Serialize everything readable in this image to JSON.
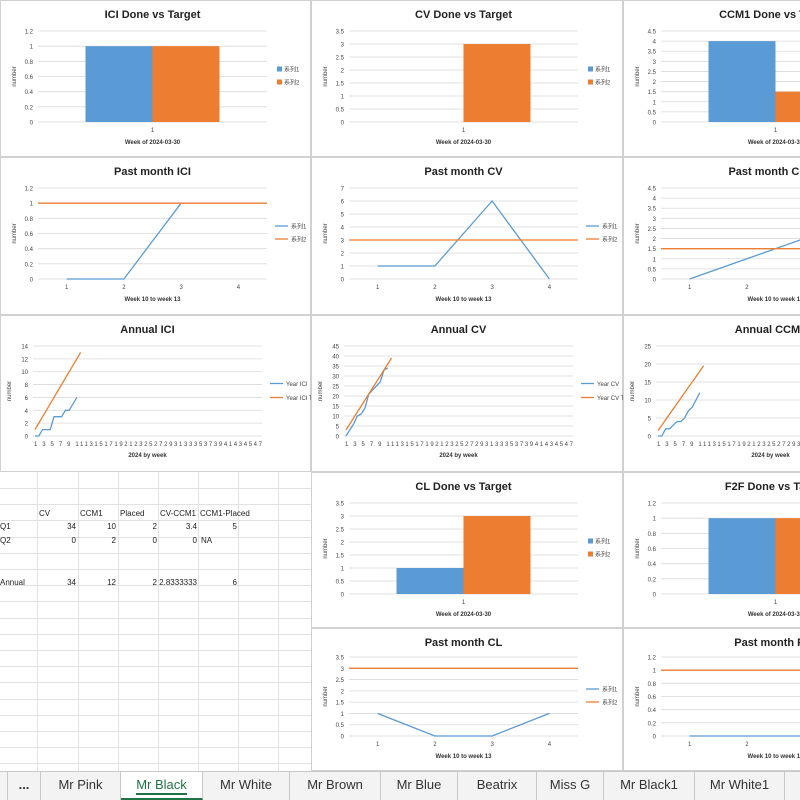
{
  "charts": [
    {
      "id": "c1",
      "type": "bar",
      "title": "ICI Done vs Target",
      "xlabel": "Week of 2024-03-30",
      "ylabel": "number",
      "categories": [
        "1"
      ],
      "ylim": [
        0,
        1.2
      ],
      "yticks": [
        "0",
        "0.2",
        "0.4",
        "0.6",
        "0.8",
        "1",
        "1.2"
      ],
      "series": [
        {
          "name": "系列1",
          "values": [
            1
          ]
        },
        {
          "name": "系列2",
          "values": [
            1
          ]
        }
      ],
      "legend": [
        "系列1",
        "系列2"
      ]
    },
    {
      "id": "c2",
      "type": "bar",
      "title": "CV Done vs Target",
      "xlabel": "Week of 2024-03-30",
      "ylabel": "number",
      "categories": [
        "1"
      ],
      "ylim": [
        0,
        3.5
      ],
      "yticks": [
        "0",
        "0.5",
        "1",
        "1.5",
        "2",
        "2.5",
        "3",
        "3.5"
      ],
      "series": [
        {
          "name": "系列1",
          "values": [
            0
          ]
        },
        {
          "name": "系列2",
          "values": [
            3
          ]
        }
      ],
      "legend": [
        "系列1",
        "系列2"
      ]
    },
    {
      "id": "c3",
      "type": "bar",
      "title": "CCM1 Done vs Target",
      "xlabel": "Week of 2024-03-30",
      "ylabel": "number",
      "categories": [
        "1"
      ],
      "ylim": [
        0,
        4.5
      ],
      "yticks": [
        "0",
        "0.5",
        "1",
        "1.5",
        "2",
        "2.5",
        "3",
        "3.5",
        "4",
        "4.5"
      ],
      "series": [
        {
          "name": "系列1",
          "values": [
            4
          ]
        },
        {
          "name": "系列2",
          "values": [
            1.5
          ]
        }
      ],
      "legend": []
    },
    {
      "id": "c4",
      "type": "line",
      "title": "Past month ICI",
      "xlabel": "Week 10 to week 13",
      "ylabel": "number",
      "categories": [
        "1",
        "2",
        "3",
        "4"
      ],
      "ylim": [
        0,
        1.2
      ],
      "yticks": [
        "0",
        "0.2",
        "0.4",
        "0.6",
        "0.8",
        "1",
        "1.2"
      ],
      "series": [
        {
          "name": "系列1",
          "values": [
            0,
            0,
            1,
            null
          ]
        },
        {
          "name": "系列2",
          "values": [
            1,
            1,
            1,
            1
          ]
        }
      ],
      "legend": [
        "系列1",
        "系列2"
      ]
    },
    {
      "id": "c5",
      "type": "line",
      "title": "Past month CV",
      "xlabel": "Week 10 to week 13",
      "ylabel": "number",
      "categories": [
        "1",
        "2",
        "3",
        "4"
      ],
      "ylim": [
        0,
        7
      ],
      "yticks": [
        "0",
        "1",
        "2",
        "3",
        "4",
        "5",
        "6",
        "7"
      ],
      "series": [
        {
          "name": "系列1",
          "values": [
            1,
            1,
            6,
            0
          ]
        },
        {
          "name": "系列2",
          "values": [
            3,
            3,
            3,
            3
          ]
        }
      ],
      "legend": [
        "系列1",
        "系列2"
      ]
    },
    {
      "id": "c6",
      "type": "line",
      "title": "Past month CCM1",
      "xlabel": "Week 10 to week 13",
      "ylabel": "number",
      "categories": [
        "1",
        "2",
        "3"
      ],
      "ylim": [
        0,
        4.5
      ],
      "yticks": [
        "0",
        "0.5",
        "1",
        "1.5",
        "2",
        "2.5",
        "3",
        "3.5",
        "4",
        "4.5"
      ],
      "series": [
        {
          "name": "系列1",
          "values": [
            0,
            1,
            2
          ]
        },
        {
          "name": "系列2",
          "values": [
            1.5,
            1.5,
            1.5
          ]
        }
      ],
      "legend": []
    },
    {
      "id": "c7",
      "type": "line",
      "title": "Annual ICI",
      "xlabel": "2024 by week",
      "ylabel": "number",
      "xticks": "1 3 5 7 9 11131517192123252729313335373941434547",
      "ylim": [
        0,
        14
      ],
      "yticks": [
        "0",
        "2",
        "4",
        "6",
        "8",
        "10",
        "12",
        "14"
      ],
      "series": [
        {
          "name": "Year ICI",
          "values": [
            0,
            0,
            1,
            1,
            1,
            3,
            3,
            3,
            4,
            4,
            5,
            6
          ]
        },
        {
          "name": "Year ICI Target",
          "values": [
            1,
            2,
            3,
            4,
            5,
            6,
            7,
            8,
            9,
            10,
            11,
            12,
            13
          ]
        }
      ],
      "legend": [
        "Year ICI",
        "Year ICI Target"
      ]
    },
    {
      "id": "c8",
      "type": "line",
      "title": "Annual CV",
      "xlabel": "2024 by week",
      "ylabel": "number",
      "xticks": "1 3 5 7 9 11131517192123252729313335373941434547",
      "ylim": [
        0,
        45
      ],
      "yticks": [
        "0",
        "5",
        "10",
        "15",
        "20",
        "25",
        "30",
        "35",
        "40",
        "45"
      ],
      "series": [
        {
          "name": "Year CV",
          "values": [
            0,
            3,
            6,
            10,
            11,
            14,
            21,
            23,
            25,
            27,
            33,
            34
          ]
        },
        {
          "name": "Year CV Target",
          "values": [
            3,
            6,
            9,
            12,
            15,
            18,
            21,
            24,
            27,
            30,
            33,
            36,
            39
          ]
        }
      ],
      "legend": [
        "Year CV",
        "Year CV Target"
      ]
    },
    {
      "id": "c9",
      "type": "line",
      "title": "Annual CCM1",
      "xlabel": "2024 by week",
      "ylabel": "number",
      "xticks": "1 3 5 7 9 11131517192123252729313335373941434547",
      "ylim": [
        0,
        25
      ],
      "yticks": [
        "0",
        "5",
        "10",
        "15",
        "20",
        "25"
      ],
      "series": [
        {
          "name": "Year CCM1",
          "values": [
            0,
            0,
            2,
            2,
            3,
            4,
            4,
            5,
            7,
            8,
            10,
            12
          ]
        },
        {
          "name": "Year CCM1 Target",
          "values": [
            1.5,
            3,
            4.5,
            6,
            7.5,
            9,
            10.5,
            12,
            13.5,
            15,
            16.5,
            18,
            19.5
          ]
        }
      ],
      "legend": []
    },
    {
      "id": "c10",
      "type": "bar",
      "title": "CL Done vs Target",
      "xlabel": "Week of 2024-03-30",
      "ylabel": "number",
      "categories": [
        "1"
      ],
      "ylim": [
        0,
        3.5
      ],
      "yticks": [
        "0",
        "0.5",
        "1",
        "1.5",
        "2",
        "2.5",
        "3",
        "3.5"
      ],
      "series": [
        {
          "name": "系列1",
          "values": [
            1
          ]
        },
        {
          "name": "系列2",
          "values": [
            3
          ]
        }
      ],
      "legend": [
        "系列1",
        "系列2"
      ]
    },
    {
      "id": "c11",
      "type": "bar",
      "title": "F2F Done vs Target",
      "xlabel": "Week of 2024-03-30",
      "ylabel": "number",
      "categories": [
        "1"
      ],
      "ylim": [
        0,
        1.2
      ],
      "yticks": [
        "0",
        "0.2",
        "0.4",
        "0.6",
        "0.8",
        "1",
        "1.2"
      ],
      "series": [
        {
          "name": "系列1",
          "values": [
            1
          ]
        },
        {
          "name": "系列2",
          "values": [
            1
          ]
        }
      ],
      "legend": []
    },
    {
      "id": "c12",
      "type": "line",
      "title": "Past month CL",
      "xlabel": "Week 10 to week 13",
      "ylabel": "number",
      "categories": [
        "1",
        "2",
        "3",
        "4"
      ],
      "ylim": [
        0,
        3.5
      ],
      "yticks": [
        "0",
        "0.5",
        "1",
        "1.5",
        "2",
        "2.5",
        "3",
        "3.5"
      ],
      "series": [
        {
          "name": "系列1",
          "values": [
            1,
            0,
            0,
            1
          ]
        },
        {
          "name": "系列2",
          "values": [
            3,
            3,
            3,
            3
          ]
        }
      ],
      "legend": [
        "系列1",
        "系列2"
      ]
    },
    {
      "id": "c13",
      "type": "line",
      "title": "Past month F2F",
      "xlabel": "Week 10 to week 13",
      "ylabel": "number",
      "categories": [
        "1",
        "2",
        "3"
      ],
      "ylim": [
        0,
        1.2
      ],
      "yticks": [
        "0",
        "0.2",
        "0.4",
        "0.6",
        "0.8",
        "1",
        "1.2"
      ],
      "series": [
        {
          "name": "系列1",
          "values": [
            0,
            0,
            0
          ]
        },
        {
          "name": "系列2",
          "values": [
            1,
            1,
            1
          ]
        }
      ],
      "legend": []
    }
  ],
  "chart_data": [
    {
      "type": "bar",
      "title": "ICI Done vs Target",
      "categories": [
        "1"
      ],
      "series": [
        {
          "name": "系列1",
          "values": [
            1
          ]
        },
        {
          "name": "系列2",
          "values": [
            1
          ]
        }
      ],
      "xlabel": "Week of 2024-03-30",
      "ylabel": "number",
      "ylim": [
        0,
        1.2
      ]
    },
    {
      "type": "bar",
      "title": "CV Done vs Target",
      "categories": [
        "1"
      ],
      "series": [
        {
          "name": "系列1",
          "values": [
            0
          ]
        },
        {
          "name": "系列2",
          "values": [
            3
          ]
        }
      ],
      "xlabel": "Week of 2024-03-30",
      "ylabel": "number",
      "ylim": [
        0,
        3.5
      ]
    },
    {
      "type": "bar",
      "title": "CCM1 Done vs Target",
      "categories": [
        "1"
      ],
      "series": [
        {
          "name": "系列1",
          "values": [
            4
          ]
        },
        {
          "name": "系列2",
          "values": [
            1.5
          ]
        }
      ],
      "xlabel": "Week of 2024-03-30",
      "ylabel": "number",
      "ylim": [
        0,
        4.5
      ]
    },
    {
      "type": "line",
      "title": "Past month ICI",
      "x": [
        1,
        2,
        3,
        4
      ],
      "series": [
        {
          "name": "系列1",
          "values": [
            0,
            0,
            1,
            null
          ]
        },
        {
          "name": "系列2",
          "values": [
            1,
            1,
            1,
            1
          ]
        }
      ],
      "xlabel": "Week 10 to week 13",
      "ylabel": "number",
      "ylim": [
        0,
        1.2
      ]
    },
    {
      "type": "line",
      "title": "Past month CV",
      "x": [
        1,
        2,
        3,
        4
      ],
      "series": [
        {
          "name": "系列1",
          "values": [
            1,
            1,
            6,
            0
          ]
        },
        {
          "name": "系列2",
          "values": [
            3,
            3,
            3,
            3
          ]
        }
      ],
      "xlabel": "Week 10 to week 13",
      "ylabel": "number",
      "ylim": [
        0,
        7
      ]
    },
    {
      "type": "line",
      "title": "Past month CCM1",
      "x": [
        1,
        2,
        3
      ],
      "series": [
        {
          "name": "系列1",
          "values": [
            0,
            1,
            2
          ]
        },
        {
          "name": "系列2",
          "values": [
            1.5,
            1.5,
            1.5
          ]
        }
      ],
      "xlabel": "Week 10 to week 13",
      "ylabel": "number",
      "ylim": [
        0,
        4.5
      ]
    },
    {
      "type": "line",
      "title": "Annual ICI",
      "series": [
        {
          "name": "Year ICI",
          "values": [
            0,
            0,
            1,
            1,
            1,
            3,
            3,
            3,
            4,
            4,
            5,
            6
          ]
        },
        {
          "name": "Year ICI Target",
          "values": [
            1,
            2,
            3,
            4,
            5,
            6,
            7,
            8,
            9,
            10,
            11,
            12,
            13
          ]
        }
      ],
      "xlabel": "2024 by week",
      "ylabel": "number",
      "ylim": [
        0,
        14
      ]
    },
    {
      "type": "line",
      "title": "Annual CV",
      "series": [
        {
          "name": "Year CV",
          "values": [
            0,
            3,
            6,
            10,
            11,
            14,
            21,
            23,
            25,
            27,
            33,
            34
          ]
        },
        {
          "name": "Year CV Target",
          "values": [
            3,
            6,
            9,
            12,
            15,
            18,
            21,
            24,
            27,
            30,
            33,
            36,
            39
          ]
        }
      ],
      "xlabel": "2024 by week",
      "ylabel": "number",
      "ylim": [
        0,
        45
      ]
    },
    {
      "type": "line",
      "title": "Annual CCM1",
      "series": [
        {
          "name": "Year CCM1",
          "values": [
            0,
            0,
            2,
            2,
            3,
            4,
            4,
            5,
            7,
            8,
            10,
            12
          ]
        },
        {
          "name": "Year CCM1 Target",
          "values": [
            1.5,
            3,
            4.5,
            6,
            7.5,
            9,
            10.5,
            12,
            13.5,
            15,
            16.5,
            18,
            19.5
          ]
        }
      ],
      "xlabel": "2024 by week",
      "ylabel": "number",
      "ylim": [
        0,
        25
      ]
    },
    {
      "type": "bar",
      "title": "CL Done vs Target",
      "categories": [
        "1"
      ],
      "series": [
        {
          "name": "系列1",
          "values": [
            1
          ]
        },
        {
          "name": "系列2",
          "values": [
            3
          ]
        }
      ],
      "xlabel": "Week of 2024-03-30",
      "ylabel": "number",
      "ylim": [
        0,
        3.5
      ]
    },
    {
      "type": "bar",
      "title": "F2F Done vs Target",
      "categories": [
        "1"
      ],
      "series": [
        {
          "name": "系列1",
          "values": [
            1
          ]
        },
        {
          "name": "系列2",
          "values": [
            1
          ]
        }
      ],
      "xlabel": "Week of 2024-03-30",
      "ylabel": "number",
      "ylim": [
        0,
        1.2
      ]
    },
    {
      "type": "line",
      "title": "Past month CL",
      "x": [
        1,
        2,
        3,
        4
      ],
      "series": [
        {
          "name": "系列1",
          "values": [
            1,
            0,
            0,
            1
          ]
        },
        {
          "name": "系列2",
          "values": [
            3,
            3,
            3,
            3
          ]
        }
      ],
      "xlabel": "Week 10 to week 13",
      "ylabel": "number",
      "ylim": [
        0,
        3.5
      ]
    },
    {
      "type": "line",
      "title": "Past month F2F",
      "x": [
        1,
        2,
        3
      ],
      "series": [
        {
          "name": "系列1",
          "values": [
            0,
            0,
            0
          ]
        },
        {
          "name": "系列2",
          "values": [
            1,
            1,
            1
          ]
        }
      ],
      "xlabel": "Week 10 to week 13",
      "ylabel": "number",
      "ylim": [
        0,
        1.2
      ]
    }
  ],
  "table": {
    "headers": [
      "CV",
      "CCM1",
      "Placed",
      "CV-CCM1",
      "CCM1-Placed"
    ],
    "rows": [
      {
        "label": "Q1",
        "values": [
          "34",
          "10",
          "2",
          "3.4",
          "5"
        ]
      },
      {
        "label": "Q2",
        "values": [
          "0",
          "2",
          "0",
          "0",
          "NA"
        ]
      },
      {
        "label": "Annual",
        "values": [
          "34",
          "12",
          "2",
          "2.8333333",
          "6"
        ]
      }
    ]
  },
  "tabs": [
    {
      "label": "..."
    },
    {
      "label": "Mr Pink"
    },
    {
      "label": "Mr Black"
    },
    {
      "label": "Mr White"
    },
    {
      "label": "Mr Brown"
    },
    {
      "label": "Mr Blue"
    },
    {
      "label": "Beatrix"
    },
    {
      "label": "Miss G"
    },
    {
      "label": "Mr Black1"
    },
    {
      "label": "Mr White1"
    }
  ],
  "active_tab": "Mr Black",
  "colors": {
    "series1": "#5b9bd5",
    "series2": "#ed7d31",
    "grid": "#d9d9d9",
    "tab_active": "#217346"
  }
}
